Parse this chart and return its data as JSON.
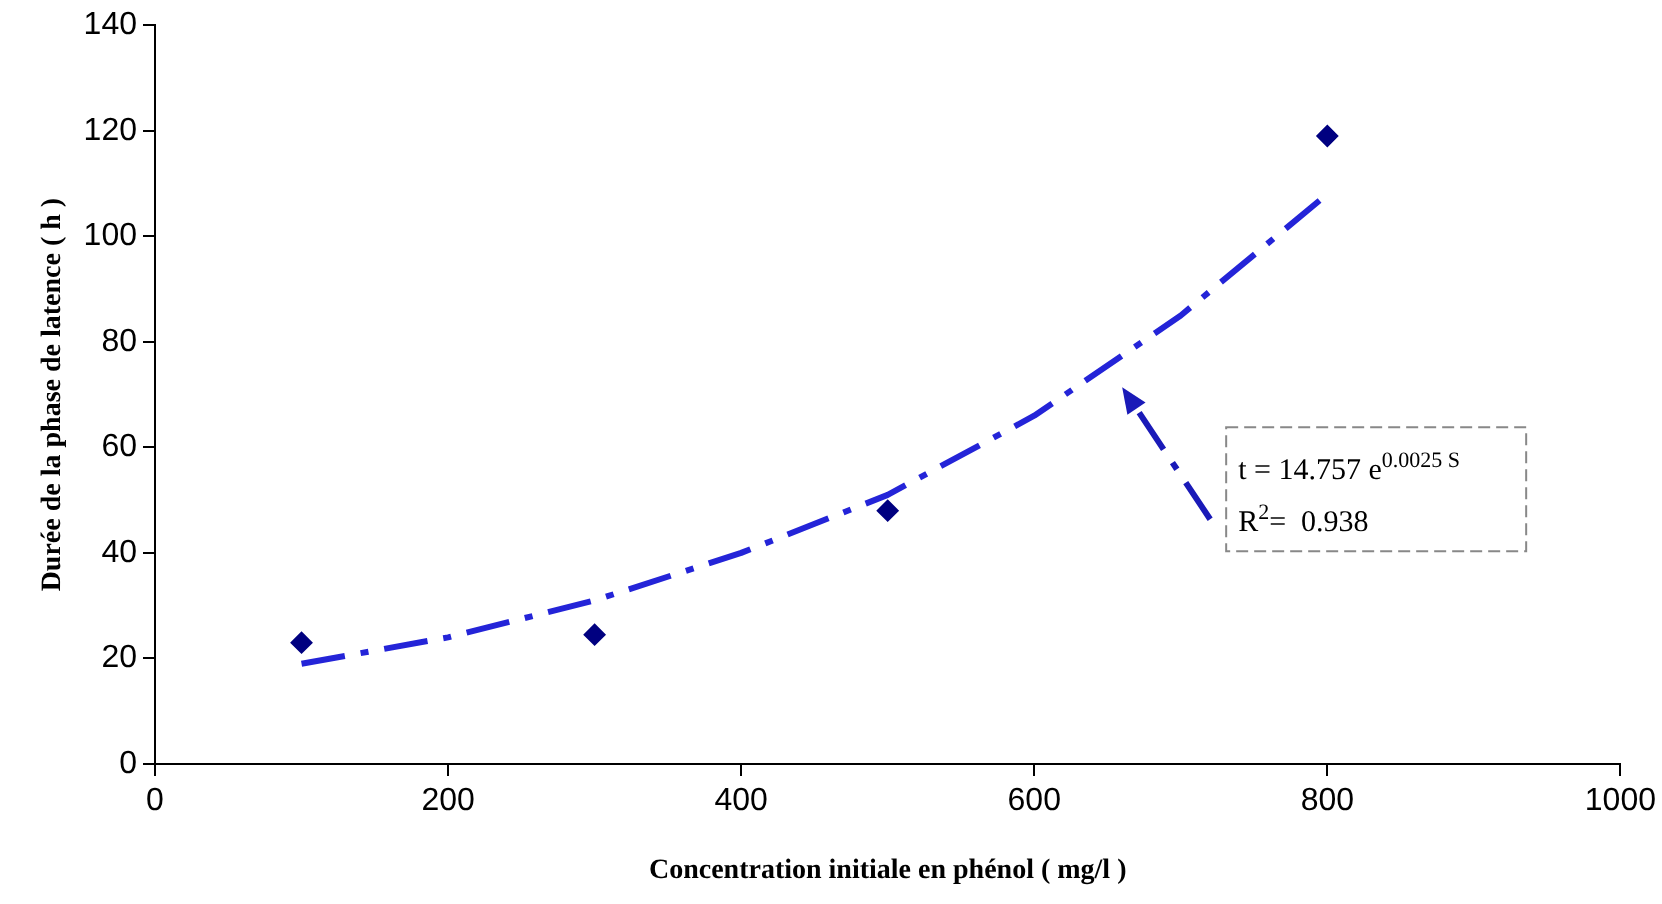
{
  "chart_data": {
    "type": "scatter",
    "xlabel": "Concentration initiale en phénol ( mg/l )",
    "ylabel": "Durée de la phase de latence ( h )",
    "xlim": [
      0,
      1000
    ],
    "xticks": [
      0,
      200,
      400,
      600,
      800,
      1000
    ],
    "ylim": [
      0,
      140
    ],
    "yticks": [
      0,
      20,
      40,
      60,
      80,
      100,
      120,
      140
    ],
    "grid": false,
    "series": [
      {
        "color": "#000080",
        "marker": "diamond",
        "x": [
          100,
          300,
          500,
          800
        ],
        "values": [
          23,
          24.5,
          48,
          119
        ]
      },
      {
        "type": "line",
        "color": "#2424d8",
        "line_style": "dashed",
        "marker": "none",
        "x": [
          100,
          200,
          300,
          400,
          500,
          600,
          700,
          800
        ],
        "values": [
          19,
          24,
          31,
          40,
          51,
          66,
          85,
          108
        ]
      }
    ],
    "annotations": [
      "t = 14.757 e$^{0.0025 S}$",
      "R$^{2}$=  0.938"
    ]
  }
}
